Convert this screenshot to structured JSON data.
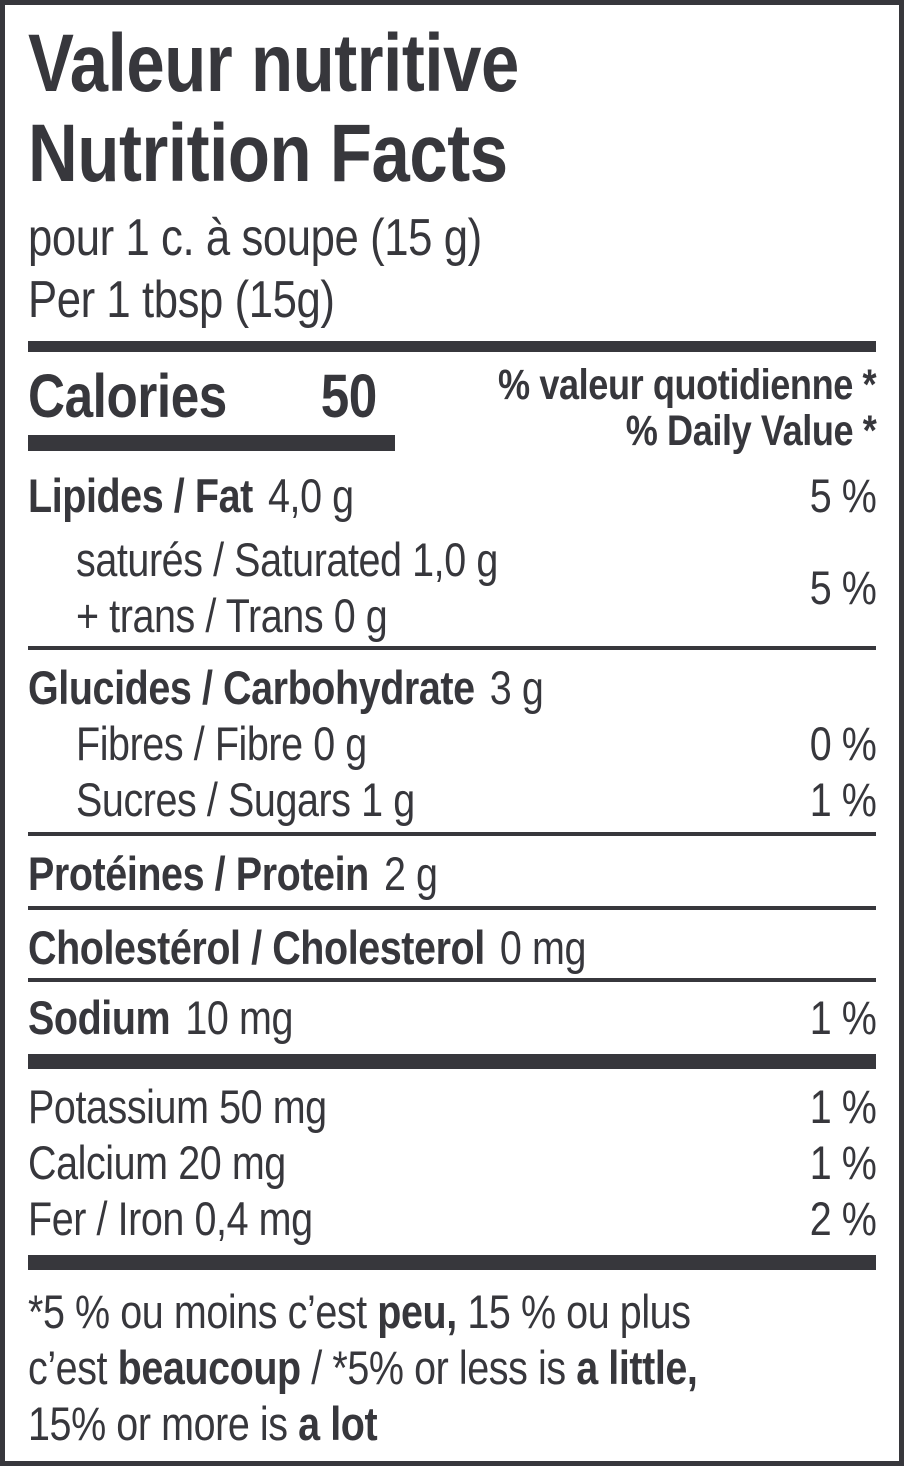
{
  "label": {
    "title_fr": "Valeur nutritive",
    "title_en": "Nutrition Facts",
    "serving_fr": "pour 1 c. à soupe (15 g)",
    "serving_en": "Per 1 tbsp (15g)",
    "calories": {
      "label": "Calories",
      "value": "50"
    },
    "daily_value_header": {
      "fr": "% valeur quotidienne *",
      "en": "% Daily Value *"
    },
    "rows": {
      "fat": {
        "label": "Lipides / Fat",
        "amount": "4,0 g",
        "dv": "5 %"
      },
      "saturated": {
        "line1": "saturés / Saturated 1,0 g",
        "line2": "+ trans / Trans 0 g",
        "dv": "5 %"
      },
      "carbohydrate": {
        "label": "Glucides / Carbohydrate",
        "amount": "3 g"
      },
      "fibre": {
        "label": "Fibres / Fibre 0 g",
        "dv": "0 %"
      },
      "sugars": {
        "label": "Sucres / Sugars 1 g",
        "dv": "1 %"
      },
      "protein": {
        "label": "Protéines / Protein",
        "amount": "2 g"
      },
      "cholesterol": {
        "label": "Cholestérol / Cholesterol",
        "amount": "0 mg"
      },
      "sodium": {
        "label": "Sodium",
        "amount": "10 mg",
        "dv": "1 %"
      },
      "potassium": {
        "label": "Potassium 50 mg",
        "dv": "1 %"
      },
      "calcium": {
        "label": "Calcium 20 mg",
        "dv": "1 %"
      },
      "iron": {
        "label": "Fer / Iron 0,4 mg",
        "dv": "2 %"
      }
    },
    "footnote": {
      "line1": {
        "a": "*5 % ou moins c’est ",
        "b": "peu,",
        "c": " 15 % ou plus"
      },
      "line2": {
        "a": "c’est ",
        "b": "beaucoup",
        "c": " / *5% or less is ",
        "d": "a little,"
      },
      "line3": {
        "a": "15% or more is ",
        "b": "a lot"
      }
    },
    "colors": {
      "ink": "#37373c",
      "background": "#ffffff"
    }
  }
}
